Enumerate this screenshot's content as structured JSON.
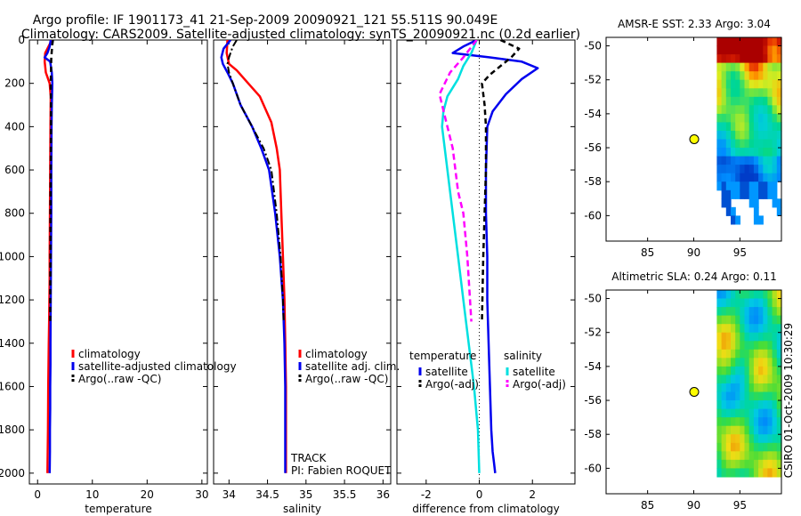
{
  "figure": {
    "title_line1": "Argo profile: IF 1901173_41 21-Sep-2009 20090921_121 55.511S 90.049E",
    "title_line2": "Climatology: CARS2009. Satellite-adjusted climatology: synTS_20090921.nc (0.2d earlier)",
    "side_stamp": "CSIRO 01-Oct-2009 10:30:29"
  },
  "chart_data": [
    {
      "id": "temperature",
      "type": "line",
      "xlabel": "temperature",
      "ylabel": "",
      "xlim": [
        -1.5,
        31
      ],
      "ylim": [
        2050,
        0
      ],
      "xticks": [
        0,
        10,
        20,
        30
      ],
      "yticks": [
        0,
        200,
        400,
        600,
        800,
        1000,
        1200,
        1400,
        1600,
        1800,
        2000
      ],
      "legend": [
        "climatology",
        "satellite-adjusted climatology",
        "Argo(..raw -QC)"
      ],
      "series": [
        {
          "name": "climatology",
          "color": "#ff0000",
          "dash": "",
          "width": 2.5,
          "x": [
            2.6,
            2.0,
            1.4,
            1.3,
            1.5,
            2.2,
            2.4,
            2.35,
            2.3,
            2.25,
            2.2,
            2.2,
            2.15,
            2.1,
            2.05,
            2.0,
            1.95,
            1.9,
            1.85,
            1.8
          ],
          "y": [
            0,
            30,
            60,
            100,
            150,
            200,
            260,
            400,
            600,
            800,
            1000,
            1100,
            1200,
            1300,
            1400,
            1500,
            1600,
            1800,
            1900,
            2000
          ]
        },
        {
          "name": "satellite-adjusted climatology",
          "color": "#0000ee",
          "dash": "",
          "width": 2.5,
          "x": [
            2.4,
            2.2,
            1.8,
            1.3,
            2.3,
            2.6,
            2.7,
            2.6,
            2.55,
            2.5,
            2.5,
            2.45,
            2.4,
            2.35,
            2.35,
            2.3,
            2.3,
            2.25,
            2.25,
            2.2
          ],
          "y": [
            0,
            30,
            60,
            80,
            100,
            150,
            200,
            300,
            400,
            600,
            800,
            1000,
            1200,
            1400,
            1500,
            1600,
            1700,
            1800,
            1900,
            2000
          ]
        },
        {
          "name": "Argo(..raw -QC)",
          "color": "#000000",
          "dash": "6,4",
          "width": 2.5,
          "x": [
            2.8,
            2.7,
            2.5,
            2.45,
            2.4,
            2.45,
            2.45,
            2.4,
            2.35,
            2.35,
            2.3,
            2.3
          ],
          "y": [
            0,
            20,
            80,
            150,
            200,
            300,
            400,
            600,
            800,
            1000,
            1200,
            1300
          ]
        }
      ]
    },
    {
      "id": "salinity",
      "type": "line",
      "xlabel": "salinity",
      "ylabel": "",
      "xlim": [
        33.8,
        36.1
      ],
      "ylim": [
        2050,
        0
      ],
      "xticks": [
        34,
        34.5,
        35,
        35.5,
        36
      ],
      "yticks": [
        0,
        200,
        400,
        600,
        800,
        1000,
        1200,
        1400,
        1600,
        1800,
        2000
      ],
      "legend": [
        "climatology",
        "satellite adj. clim.",
        "Argo(..raw -QC)"
      ],
      "annotations": [
        "TRACK",
        "PI: Fabien ROQUET"
      ],
      "series": [
        {
          "name": "climatology",
          "color": "#ff0000",
          "dash": "",
          "width": 2.5,
          "x": [
            33.98,
            33.97,
            34.0,
            34.1,
            34.25,
            34.4,
            34.55,
            34.62,
            34.66,
            34.68,
            34.7,
            34.72,
            34.73,
            34.74,
            34.74,
            34.74
          ],
          "y": [
            0,
            60,
            110,
            140,
            200,
            260,
            380,
            500,
            600,
            800,
            1000,
            1200,
            1400,
            1600,
            1800,
            2000
          ]
        },
        {
          "name": "satellite adj. clim.",
          "color": "#0000ee",
          "dash": "",
          "width": 2.5,
          "x": [
            34.02,
            33.93,
            33.9,
            33.92,
            33.98,
            34.05,
            34.15,
            34.3,
            34.42,
            34.52,
            34.6,
            34.66,
            34.7,
            34.72,
            34.73,
            34.73,
            34.73
          ],
          "y": [
            0,
            40,
            80,
            110,
            150,
            200,
            300,
            400,
            500,
            600,
            800,
            1000,
            1200,
            1400,
            1600,
            1800,
            2000
          ]
        },
        {
          "name": "Argo(..raw -QC)",
          "color": "#000000",
          "dash": "8,3,2,3",
          "width": 2,
          "x": [
            34.1,
            34.05,
            34.0,
            33.98,
            34.0,
            34.05,
            34.15,
            34.3,
            34.45,
            34.55,
            34.62,
            34.67,
            34.7,
            34.71
          ],
          "y": [
            0,
            30,
            80,
            110,
            150,
            200,
            300,
            400,
            500,
            600,
            800,
            1000,
            1200,
            1300
          ]
        }
      ]
    },
    {
      "id": "difference",
      "type": "line",
      "xlabel": "difference from climatology",
      "ylabel": "",
      "xlim": [
        -3.1,
        3.6
      ],
      "ylim": [
        2050,
        0
      ],
      "xticks": [
        -2,
        0,
        2
      ],
      "yticks": [
        0,
        200,
        400,
        600,
        800,
        1000,
        1200,
        1400,
        1600,
        1800,
        2000
      ],
      "legend_groups": [
        {
          "title": "temperature",
          "items": [
            "satellite",
            "Argo(-adj)"
          ]
        },
        {
          "title": "salinity",
          "items": [
            "satellite",
            "Argo(-adj)"
          ]
        }
      ],
      "series": [
        {
          "name": "temperature satellite",
          "color": "#0000ee",
          "dash": "",
          "width": 2.5,
          "x": [
            -0.1,
            -0.6,
            -1.0,
            0.4,
            1.6,
            2.2,
            1.6,
            1.0,
            0.5,
            0.3,
            0.25,
            0.25,
            0.3,
            0.3,
            0.35,
            0.4,
            0.45,
            0.5,
            0.55,
            0.6
          ],
          "y": [
            0,
            30,
            60,
            80,
            100,
            130,
            180,
            250,
            330,
            400,
            600,
            800,
            1000,
            1200,
            1400,
            1600,
            1800,
            1900,
            1950,
            2000
          ]
        },
        {
          "name": "temperature Argo(-adj)",
          "color": "#000000",
          "dash": "6,4",
          "width": 2.5,
          "x": [
            0.8,
            1.5,
            1.2,
            0.8,
            0.4,
            0.1,
            0.2,
            0.25,
            0.25,
            0.2,
            0.15,
            0.1
          ],
          "y": [
            0,
            40,
            80,
            120,
            160,
            200,
            300,
            400,
            600,
            800,
            1000,
            1300
          ]
        },
        {
          "name": "salinity satellite",
          "color": "#00e0e0",
          "dash": "",
          "width": 2.5,
          "x": [
            -0.1,
            -0.3,
            -0.6,
            -0.8,
            -1.2,
            -1.35,
            -1.4,
            -1.3,
            -1.2,
            -1.1,
            -1.0,
            -0.8,
            -0.6,
            -0.4,
            -0.2,
            -0.05,
            0.0
          ],
          "y": [
            0,
            60,
            120,
            180,
            260,
            330,
            400,
            500,
            600,
            700,
            800,
            1000,
            1200,
            1400,
            1600,
            1800,
            2000
          ]
        },
        {
          "name": "salinity Argo(-adj)",
          "color": "#ff00ff",
          "dash": "7,4",
          "width": 2.5,
          "x": [
            -0.1,
            -0.6,
            -1.1,
            -1.5,
            -1.3,
            -1.0,
            -0.8,
            -0.6,
            -0.45,
            -0.35,
            -0.3
          ],
          "y": [
            0,
            80,
            150,
            250,
            350,
            500,
            700,
            800,
            1000,
            1200,
            1300
          ]
        }
      ]
    },
    {
      "id": "sst_map",
      "type": "heatmap",
      "title": "AMSR-E SST: 2.33 Argo: 3.04",
      "xlim": [
        80.5,
        99.5
      ],
      "ylim": [
        -61.5,
        -49.5
      ],
      "xticks": [
        85,
        90,
        95
      ],
      "yticks": [
        -50,
        -52,
        -54,
        -56,
        -58,
        -60
      ],
      "data_lon_range": [
        92.5,
        99.5
      ],
      "data_lat_range": [
        -60.2,
        -49.5
      ],
      "missing_below_lat": -58.2,
      "marker": {
        "lon": 90.05,
        "lat": -55.5
      }
    },
    {
      "id": "sla_map",
      "type": "heatmap",
      "title": "Altimetric SLA: 0.24 Argo: 0.11",
      "xlim": [
        80.5,
        99.5
      ],
      "ylim": [
        -61.5,
        -49.5
      ],
      "xticks": [
        85,
        90,
        95
      ],
      "yticks": [
        -50,
        -52,
        -54,
        -56,
        -58,
        -60
      ],
      "data_lon_range": [
        92.5,
        99.5
      ],
      "data_lat_range": [
        -60.2,
        -49.5
      ],
      "marker": {
        "lon": 90.05,
        "lat": -55.5
      }
    }
  ]
}
